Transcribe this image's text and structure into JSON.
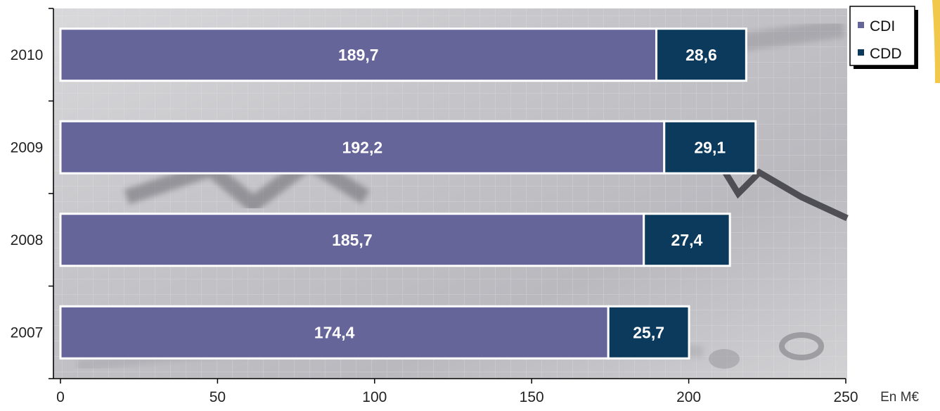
{
  "chart_data": {
    "type": "bar",
    "orientation": "horizontal",
    "stacked": true,
    "categories": [
      "2010",
      "2009",
      "2008",
      "2007"
    ],
    "series": [
      {
        "name": "CDI",
        "values": [
          189.7,
          192.2,
          185.7,
          174.4
        ],
        "labels": [
          "189,7",
          "192,2",
          "185,7",
          "174,4"
        ],
        "color": "#66659a"
      },
      {
        "name": "CDD",
        "values": [
          28.6,
          29.1,
          27.4,
          25.7
        ],
        "labels": [
          "28,6",
          "29,1",
          "27,4",
          "25,7"
        ],
        "color": "#0c3a5c"
      }
    ],
    "x_ticks": [
      "0",
      "50",
      "100",
      "150",
      "200",
      "250"
    ],
    "xlim": [
      0,
      250
    ],
    "unit_label": "En M€",
    "legend_position": "top-right",
    "background": "photographic stock chart image (greyscale)"
  }
}
